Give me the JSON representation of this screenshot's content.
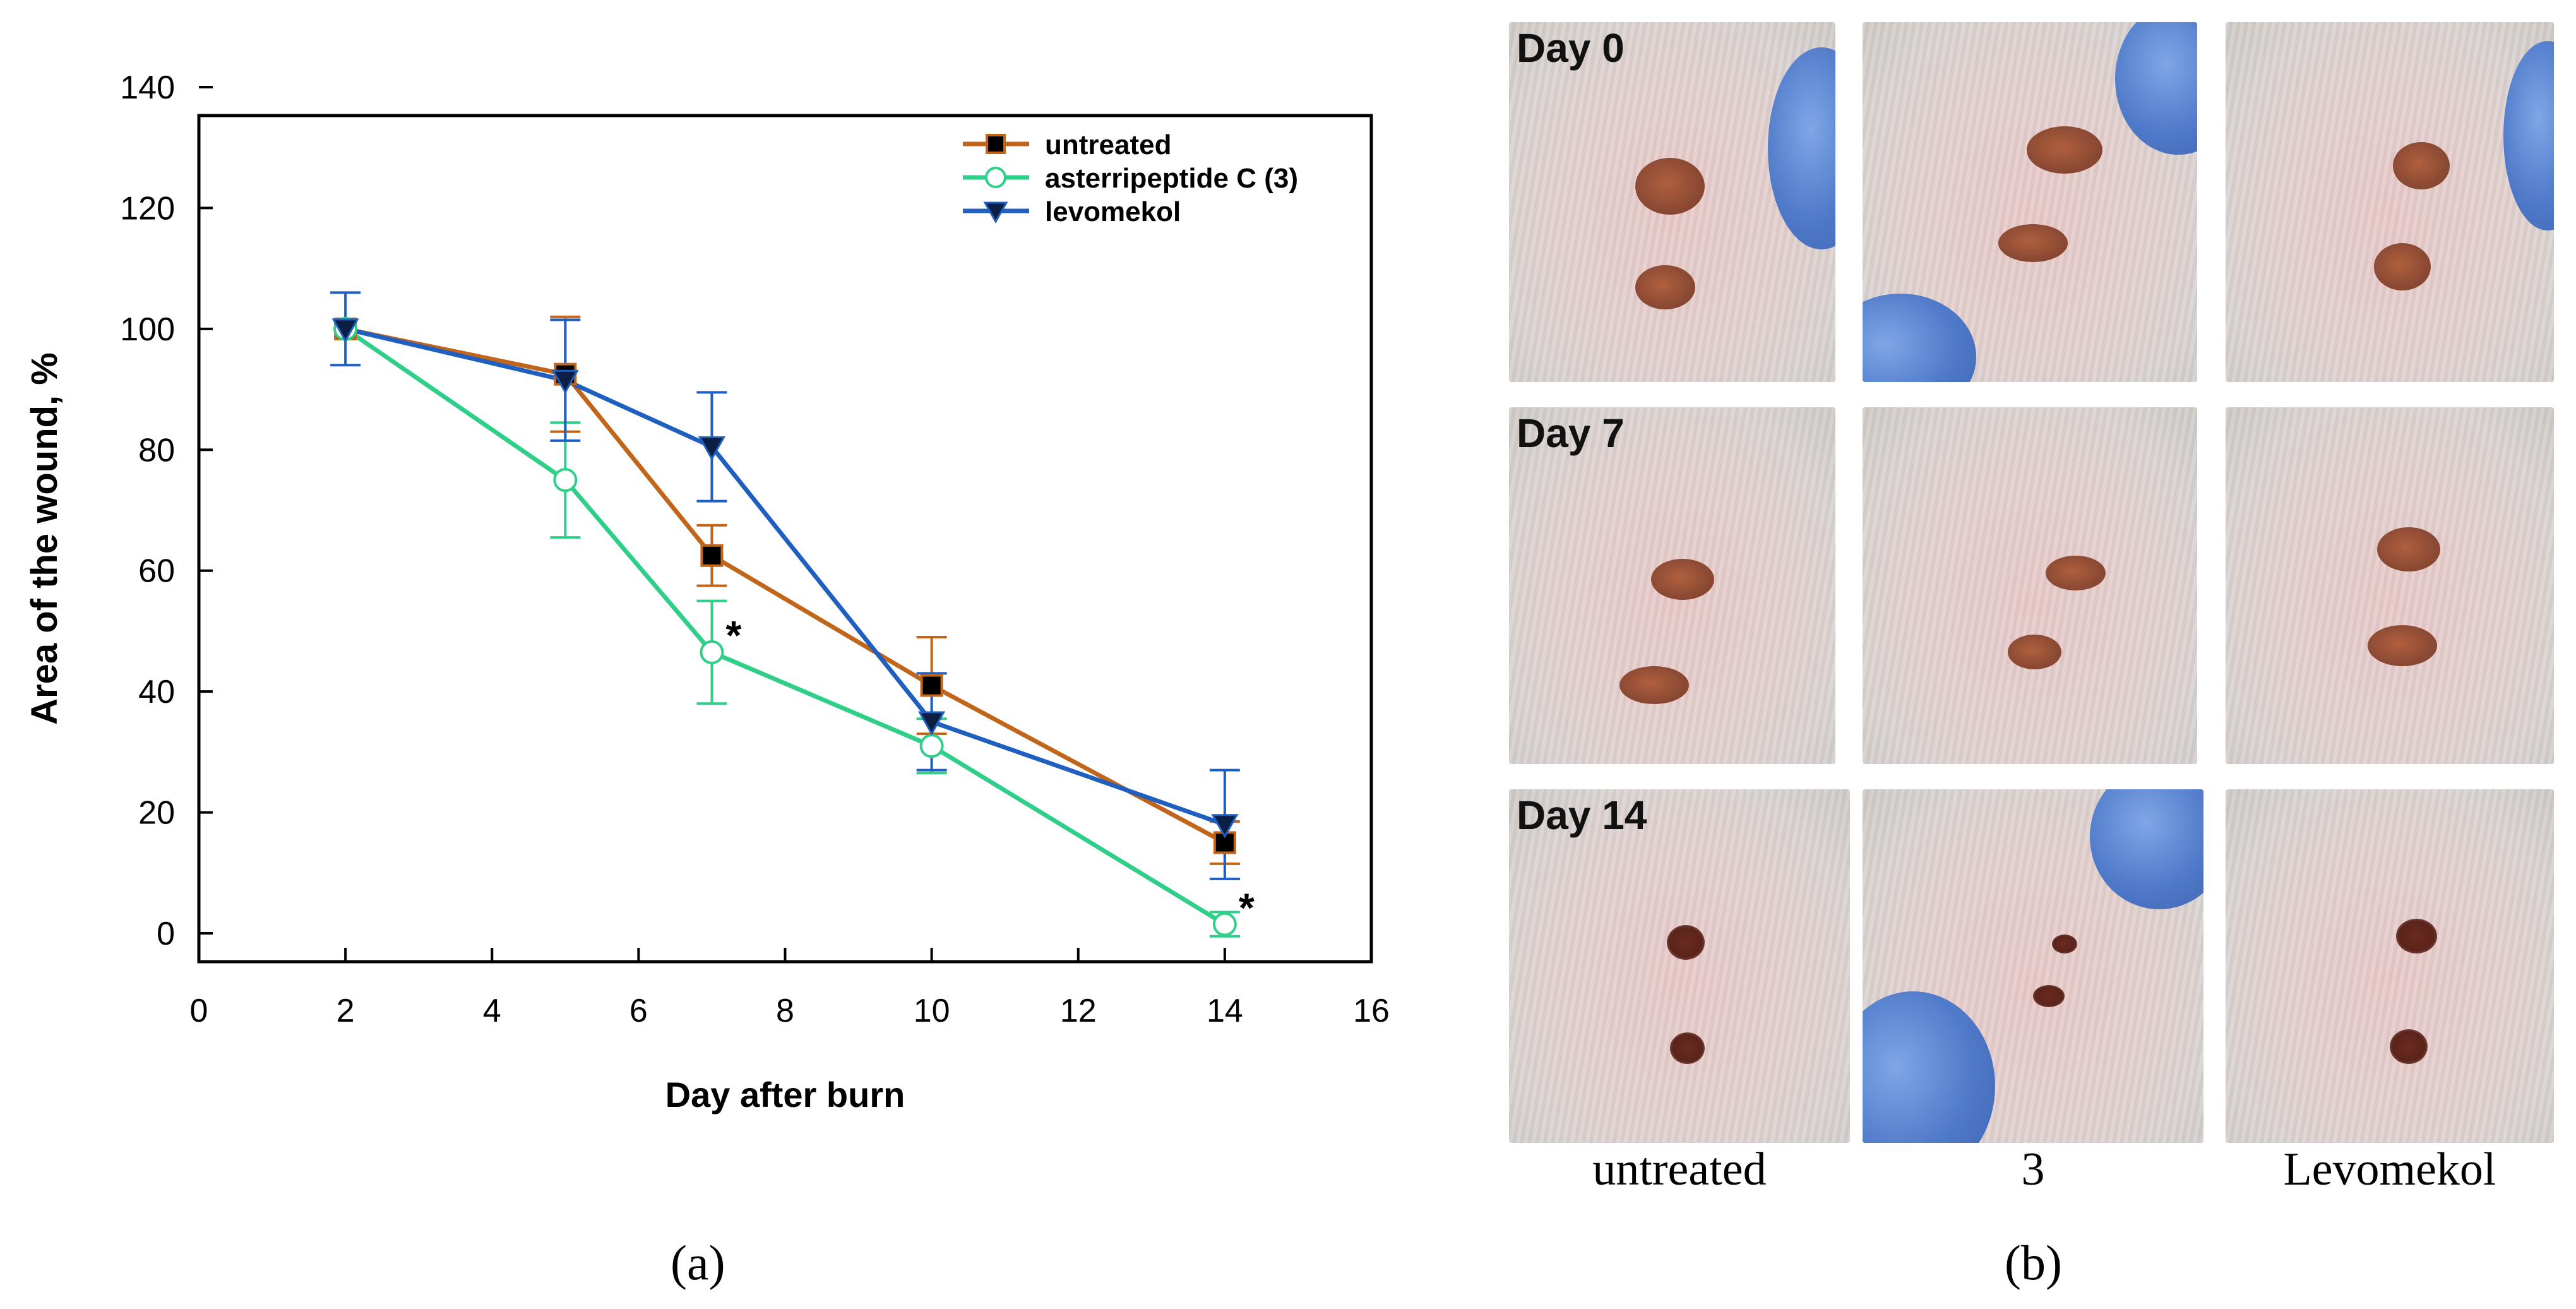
{
  "panel_a_label": "(a)",
  "panel_b_label": "(b)",
  "chart_data": {
    "type": "line",
    "title": "",
    "xlabel": "Day after burn",
    "ylabel": "Area of the wound, %",
    "xlim": [
      0,
      16
    ],
    "ylim": [
      0,
      140
    ],
    "xticks": [
      0,
      2,
      4,
      6,
      8,
      10,
      12,
      14,
      16
    ],
    "yticks": [
      0,
      20,
      40,
      60,
      80,
      100,
      120,
      140
    ],
    "legend_position": "top-right",
    "series": [
      {
        "name": "untreated",
        "color": "#c0651a",
        "marker": "square",
        "x": [
          2,
          5,
          7,
          10,
          14
        ],
        "y": [
          100,
          92.5,
          62.5,
          41,
          15
        ],
        "err": [
          0,
          9.5,
          5,
          8,
          3.5
        ],
        "stars": []
      },
      {
        "name": "asterripeptide C (3)",
        "color": "#2fcf8a",
        "marker": "circle-open",
        "x": [
          2,
          5,
          7,
          10,
          14
        ],
        "y": [
          100,
          75,
          46.5,
          31,
          1.5
        ],
        "err": [
          0,
          9.5,
          8.5,
          4.5,
          2
        ],
        "stars": [
          7,
          14
        ]
      },
      {
        "name": "levomekol",
        "color": "#1f5fbf",
        "marker": "triangle-down",
        "x": [
          2,
          5,
          7,
          10,
          14
        ],
        "y": [
          100,
          91.5,
          80.5,
          35,
          18
        ],
        "err": [
          6,
          10,
          9,
          8,
          9
        ],
        "stars": []
      }
    ],
    "annotations": [
      "*",
      "*"
    ]
  },
  "photos": {
    "rows": [
      "Day 0",
      "Day 7",
      "Day 14"
    ],
    "columns": [
      "untreated",
      "3",
      "Levomekol"
    ]
  }
}
